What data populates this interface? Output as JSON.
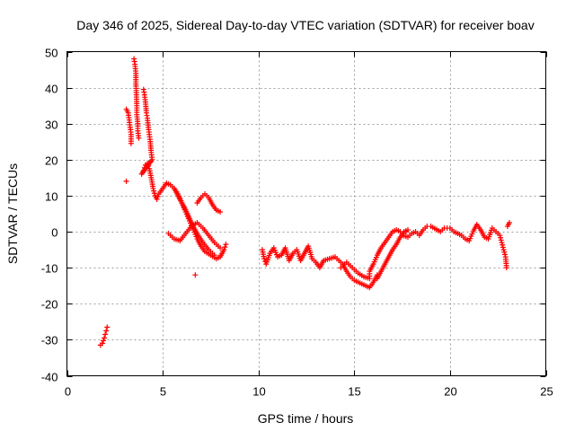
{
  "chart_data": {
    "type": "scatter",
    "title": "Day 346 of 2025, Sidereal Day-to-day VTEC variation (SDTVAR) for receiver boav",
    "xlabel": "GPS time / hours",
    "ylabel": "SDTVAR / TECUs",
    "xlim": [
      0,
      25
    ],
    "ylim": [
      -40,
      50
    ],
    "xticks": [
      0,
      5,
      10,
      15,
      20,
      25
    ],
    "yticks": [
      -40,
      -30,
      -20,
      -10,
      0,
      10,
      20,
      30,
      40,
      50
    ],
    "grid": true,
    "marker": "+",
    "color": "#ff0000",
    "series": [
      {
        "name": "SDTVAR",
        "points": [
          [
            1.75,
            -31.5
          ],
          [
            1.85,
            -31.0
          ],
          [
            1.95,
            -29.5
          ],
          [
            2.0,
            -28.5
          ],
          [
            2.05,
            -27.5
          ],
          [
            2.1,
            -26.5
          ],
          [
            3.1,
            14.0
          ],
          [
            3.1,
            34.0
          ],
          [
            3.2,
            33.0
          ],
          [
            3.25,
            31.0
          ],
          [
            3.3,
            29.0
          ],
          [
            3.35,
            27.0
          ],
          [
            3.35,
            24.5
          ],
          [
            3.5,
            48.0
          ],
          [
            3.55,
            46.5
          ],
          [
            3.6,
            44.0
          ],
          [
            3.6,
            41.0
          ],
          [
            3.65,
            35.0
          ],
          [
            3.65,
            32.5
          ],
          [
            3.7,
            30.0
          ],
          [
            3.7,
            28.0
          ],
          [
            3.75,
            26.0
          ],
          [
            4.0,
            39.5
          ],
          [
            4.05,
            38.0
          ],
          [
            4.1,
            36.0
          ],
          [
            4.15,
            33.0
          ],
          [
            4.2,
            31.5
          ],
          [
            4.25,
            29.0
          ],
          [
            4.3,
            27.0
          ],
          [
            4.35,
            25.0
          ],
          [
            4.4,
            22.0
          ],
          [
            4.45,
            20.0
          ],
          [
            3.9,
            16.0
          ],
          [
            4.0,
            17.0
          ],
          [
            4.1,
            18.5
          ],
          [
            4.2,
            19.0
          ],
          [
            4.3,
            17.5
          ],
          [
            4.4,
            15.0
          ],
          [
            4.5,
            12.0
          ],
          [
            4.6,
            10.0
          ],
          [
            4.7,
            9.0
          ],
          [
            4.8,
            10.5
          ],
          [
            5.0,
            12.0
          ],
          [
            5.2,
            13.5
          ],
          [
            5.4,
            13.0
          ],
          [
            5.6,
            12.0
          ],
          [
            5.8,
            10.5
          ],
          [
            6.0,
            8.0
          ],
          [
            6.2,
            5.5
          ],
          [
            6.4,
            3.0
          ],
          [
            6.6,
            0.5
          ],
          [
            6.8,
            -2.0
          ],
          [
            7.0,
            -4.0
          ],
          [
            7.2,
            -5.5
          ],
          [
            7.5,
            -6.5
          ],
          [
            7.8,
            -7.5
          ],
          [
            8.0,
            -7.0
          ],
          [
            8.2,
            -5.0
          ],
          [
            8.3,
            -3.5
          ],
          [
            5.3,
            -0.5
          ],
          [
            5.6,
            -2.0
          ],
          [
            5.9,
            -2.5
          ],
          [
            6.2,
            -0.5
          ],
          [
            6.5,
            1.5
          ],
          [
            6.8,
            2.5
          ],
          [
            7.1,
            1.0
          ],
          [
            7.4,
            -1.0
          ],
          [
            7.7,
            -3.0
          ],
          [
            8.0,
            -4.5
          ],
          [
            5.6,
            12.0
          ],
          [
            5.9,
            9.0
          ],
          [
            6.2,
            6.0
          ],
          [
            6.5,
            2.5
          ],
          [
            6.8,
            -0.5
          ],
          [
            7.1,
            -3.0
          ],
          [
            7.4,
            -5.0
          ],
          [
            7.7,
            -6.5
          ],
          [
            6.7,
            -12.0
          ],
          [
            6.8,
            8.0
          ],
          [
            7.0,
            9.5
          ],
          [
            7.2,
            10.5
          ],
          [
            7.4,
            9.5
          ],
          [
            7.6,
            7.5
          ],
          [
            7.8,
            6.0
          ],
          [
            8.0,
            5.5
          ],
          [
            10.2,
            -5.0
          ],
          [
            10.3,
            -7.5
          ],
          [
            10.4,
            -9.0
          ],
          [
            10.6,
            -6.0
          ],
          [
            10.8,
            -4.5
          ],
          [
            11.0,
            -7.0
          ],
          [
            11.2,
            -6.5
          ],
          [
            11.4,
            -4.5
          ],
          [
            11.6,
            -8.0
          ],
          [
            11.8,
            -6.0
          ],
          [
            12.0,
            -5.0
          ],
          [
            12.2,
            -8.0
          ],
          [
            12.4,
            -6.0
          ],
          [
            12.6,
            -4.0
          ],
          [
            12.8,
            -7.5
          ],
          [
            13.0,
            -8.5
          ],
          [
            13.2,
            -10.0
          ],
          [
            13.4,
            -8.0
          ],
          [
            14.0,
            -7.0
          ],
          [
            14.2,
            -8.0
          ],
          [
            14.4,
            -9.0
          ],
          [
            14.6,
            -11.0
          ],
          [
            14.8,
            -12.5
          ],
          [
            15.0,
            -13.5
          ],
          [
            15.2,
            -14.0
          ],
          [
            15.4,
            -14.5
          ],
          [
            15.6,
            -15.0
          ],
          [
            15.8,
            -15.5
          ],
          [
            16.0,
            -14.0
          ],
          [
            16.2,
            -12.0
          ],
          [
            14.3,
            -10.0
          ],
          [
            14.6,
            -8.5
          ],
          [
            14.9,
            -10.0
          ],
          [
            15.2,
            -11.5
          ],
          [
            15.5,
            -12.5
          ],
          [
            15.8,
            -13.0
          ],
          [
            15.8,
            -11.0
          ],
          [
            16.0,
            -9.0
          ],
          [
            16.2,
            -6.5
          ],
          [
            16.4,
            -4.5
          ],
          [
            16.6,
            -3.0
          ],
          [
            16.8,
            -1.5
          ],
          [
            17.0,
            0.0
          ],
          [
            17.2,
            0.5
          ],
          [
            17.4,
            0.0
          ],
          [
            16.2,
            -13.0
          ],
          [
            16.4,
            -11.0
          ],
          [
            16.6,
            -9.0
          ],
          [
            16.8,
            -7.0
          ],
          [
            17.0,
            -5.0
          ],
          [
            17.2,
            -3.5
          ],
          [
            17.4,
            -1.5
          ],
          [
            17.6,
            0.0
          ],
          [
            17.8,
            0.5
          ],
          [
            17.5,
            -1.0
          ],
          [
            17.8,
            -1.5
          ],
          [
            18.0,
            -0.5
          ],
          [
            18.2,
            0.0
          ],
          [
            18.4,
            -1.0
          ],
          [
            18.6,
            0.5
          ],
          [
            18.8,
            1.5
          ],
          [
            19.0,
            1.5
          ],
          [
            19.5,
            0.0
          ],
          [
            19.7,
            1.0
          ],
          [
            20.0,
            1.0
          ],
          [
            20.2,
            0.0
          ],
          [
            20.4,
            -0.5
          ],
          [
            20.6,
            -1.0
          ],
          [
            20.8,
            -2.0
          ],
          [
            21.0,
            -2.5
          ],
          [
            21.2,
            0.0
          ],
          [
            21.4,
            2.0
          ],
          [
            21.6,
            0.5
          ],
          [
            21.8,
            -1.5
          ],
          [
            22.0,
            -2.0
          ],
          [
            22.2,
            1.0
          ],
          [
            22.4,
            0.0
          ],
          [
            22.6,
            -1.0
          ],
          [
            22.7,
            -3.0
          ],
          [
            22.8,
            -5.0
          ],
          [
            22.9,
            -7.0
          ],
          [
            22.95,
            -10.0
          ],
          [
            23.0,
            1.5
          ],
          [
            23.1,
            2.5
          ]
        ]
      }
    ]
  }
}
